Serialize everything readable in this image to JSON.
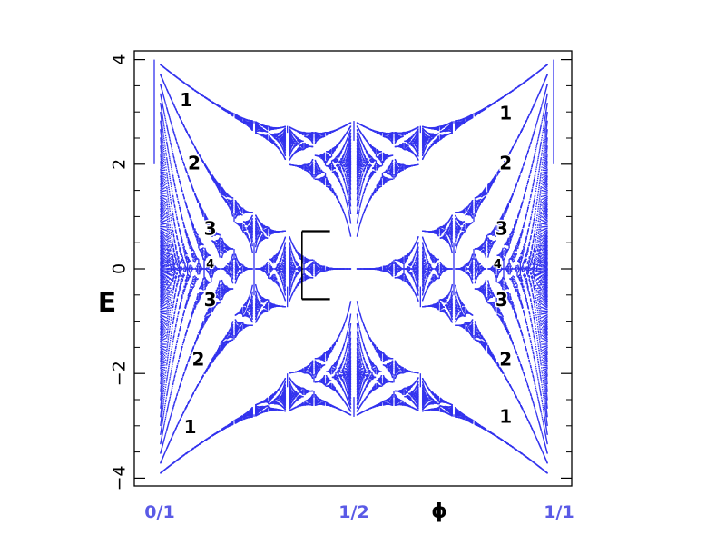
{
  "chart_data": {
    "type": "scatter",
    "title": "",
    "xlabel": "ϕ",
    "ylabel": "E",
    "xlim": [
      0,
      1
    ],
    "ylim": [
      -4.2,
      4.2
    ],
    "grid": false,
    "y_ticks": [
      -4,
      -2,
      0,
      2,
      4
    ],
    "y_tick_labels": [
      "−4",
      "−2",
      "0",
      "2",
      "4"
    ],
    "x_tick_labels": [
      {
        "value": 0.0,
        "label": "0/1"
      },
      {
        "value": 0.5,
        "label": "1/2"
      },
      {
        "value": 1.0,
        "label": "1/1"
      }
    ],
    "series": [
      {
        "description": "energy spectrum points",
        "color": "#3333ee",
        "max_denominator": 64
      }
    ],
    "region_labels": [
      {
        "text": "1",
        "x": 0.08,
        "y": 3.2
      },
      {
        "text": "2",
        "x": 0.1,
        "y": 2.0
      },
      {
        "text": "3",
        "x": 0.14,
        "y": 0.75
      },
      {
        "text": "4",
        "x": 0.14,
        "y": 0.08
      },
      {
        "text": "3",
        "x": 0.14,
        "y": -0.62
      },
      {
        "text": "2",
        "x": 0.11,
        "y": -1.75
      },
      {
        "text": "1",
        "x": 0.09,
        "y": -3.05
      },
      {
        "text": "1",
        "x": 0.88,
        "y": 2.95
      },
      {
        "text": "2",
        "x": 0.88,
        "y": 2.0
      },
      {
        "text": "3",
        "x": 0.87,
        "y": 0.75
      },
      {
        "text": "4",
        "x": 0.86,
        "y": 0.08
      },
      {
        "text": "3",
        "x": 0.87,
        "y": -0.62
      },
      {
        "text": "2",
        "x": 0.88,
        "y": -1.75
      },
      {
        "text": "1",
        "x": 0.88,
        "y": -2.85
      }
    ],
    "gap_markers": [
      {
        "x_from": 0.37,
        "x_to": 0.44,
        "y": 0.72
      },
      {
        "x_from": 0.37,
        "x_to": 0.44,
        "y": -0.58
      },
      {
        "x": 0.37,
        "y_from": -0.58,
        "y_to": 0.72
      }
    ]
  }
}
